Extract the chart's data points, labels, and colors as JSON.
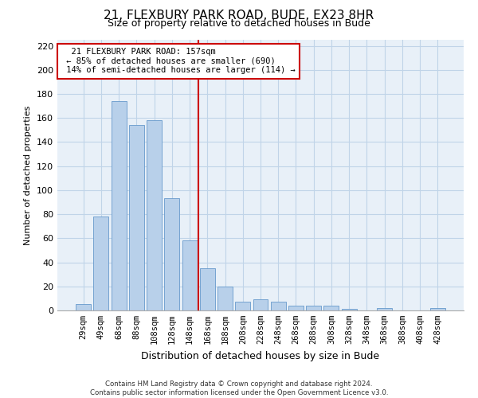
{
  "title": "21, FLEXBURY PARK ROAD, BUDE, EX23 8HR",
  "subtitle": "Size of property relative to detached houses in Bude",
  "xlabel": "Distribution of detached houses by size in Bude",
  "ylabel": "Number of detached properties",
  "footer_line1": "Contains HM Land Registry data © Crown copyright and database right 2024.",
  "footer_line2": "Contains public sector information licensed under the Open Government Licence v3.0.",
  "bar_labels": [
    "29sqm",
    "49sqm",
    "68sqm",
    "88sqm",
    "108sqm",
    "128sqm",
    "148sqm",
    "168sqm",
    "188sqm",
    "208sqm",
    "228sqm",
    "248sqm",
    "268sqm",
    "288sqm",
    "308sqm",
    "328sqm",
    "348sqm",
    "368sqm",
    "388sqm",
    "408sqm",
    "428sqm"
  ],
  "bar_values": [
    5,
    78,
    174,
    154,
    158,
    93,
    58,
    35,
    20,
    7,
    9,
    7,
    4,
    4,
    4,
    1,
    0,
    2,
    0,
    0,
    2
  ],
  "bar_color": "#b8d0ea",
  "bar_edge_color": "#6699cc",
  "grid_color": "#c0d4e8",
  "bg_color": "#e8f0f8",
  "vline_color": "#cc0000",
  "vline_x": 6.5,
  "annotation_text": "  21 FLEXBURY PARK ROAD: 157sqm  \n ← 85% of detached houses are smaller (690)\n 14% of semi-detached houses are larger (114) →",
  "annotation_box_color": "#cc0000",
  "ylim": [
    0,
    225
  ],
  "yticks": [
    0,
    20,
    40,
    60,
    80,
    100,
    120,
    140,
    160,
    180,
    200,
    220
  ],
  "title_fontsize": 11,
  "subtitle_fontsize": 9,
  "ylabel_fontsize": 8,
  "xlabel_fontsize": 9,
  "tick_fontsize": 8,
  "xtick_fontsize": 7.5
}
